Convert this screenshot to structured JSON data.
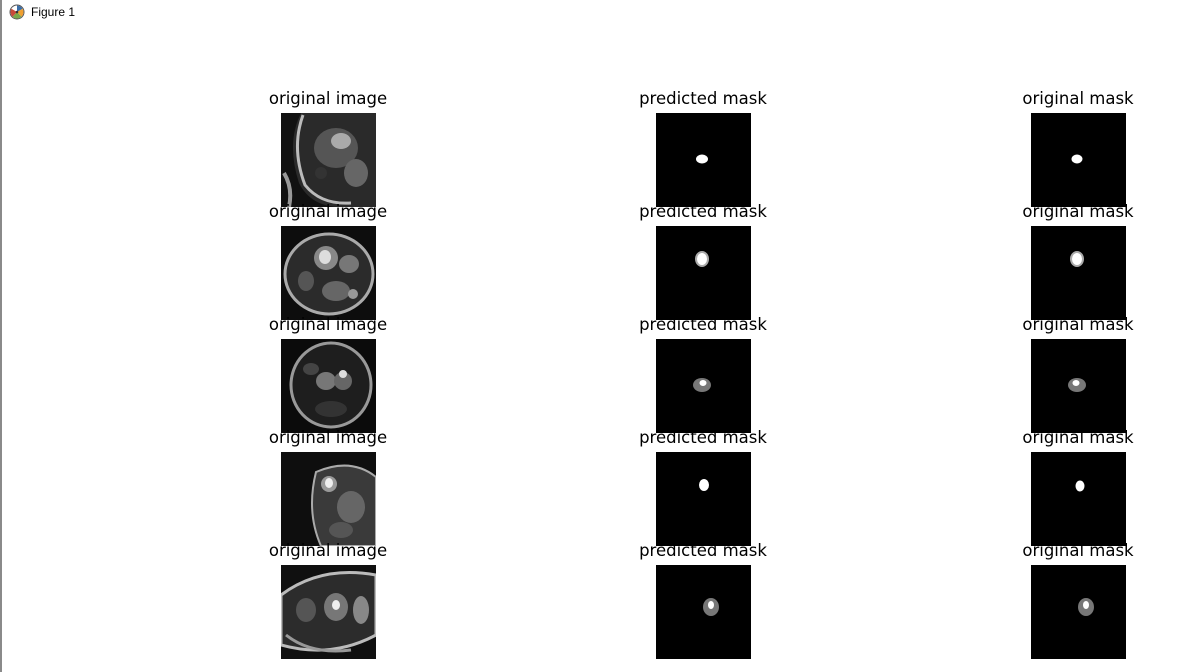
{
  "window": {
    "title": "Figure 1",
    "icon": "matplotlib-icon"
  },
  "figure": {
    "rows": 5,
    "columns": [
      {
        "title": "original image"
      },
      {
        "title": "predicted mask"
      },
      {
        "title": "original mask"
      }
    ]
  }
}
